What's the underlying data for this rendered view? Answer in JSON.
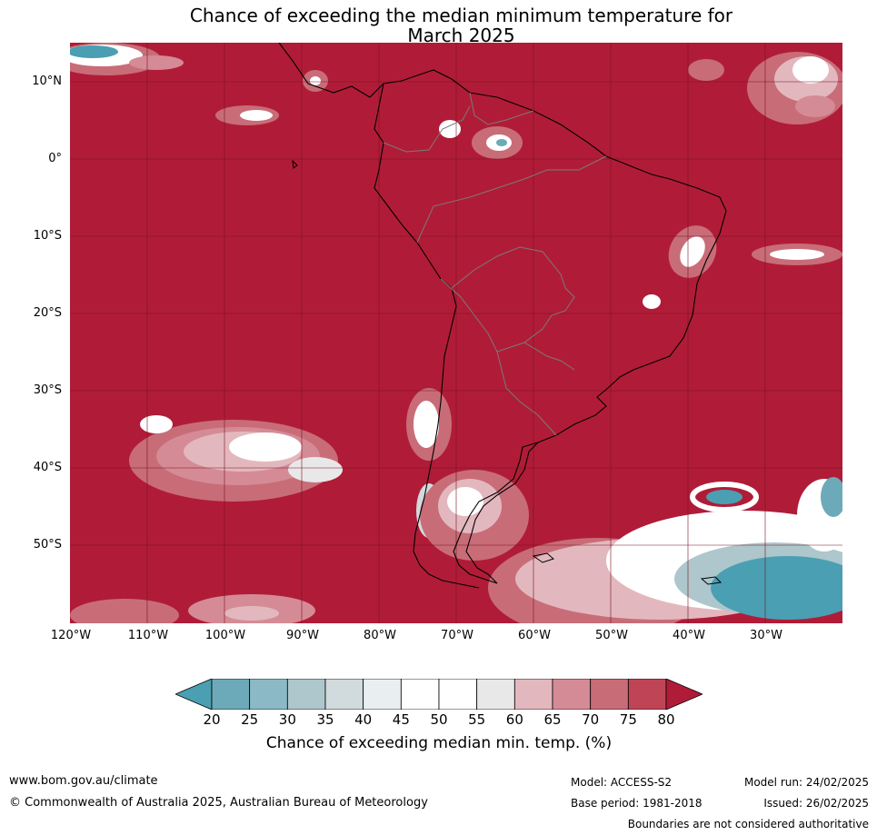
{
  "title_line1": "Chance of exceeding the median minimum temperature for",
  "title_line2": "March 2025",
  "lat_labels": [
    "10°N",
    "0°",
    "10°S",
    "20°S",
    "30°S",
    "40°S",
    "50°S"
  ],
  "lon_labels": [
    "120°W",
    "110°W",
    "100°W",
    "90°W",
    "80°W",
    "70°W",
    "60°W",
    "50°W",
    "40°W",
    "30°W"
  ],
  "colorbar": {
    "ticks": [
      "20",
      "25",
      "30",
      "35",
      "40",
      "45",
      "50",
      "55",
      "60",
      "65",
      "70",
      "75",
      "80"
    ],
    "colors": [
      "#4a9fb2",
      "#6daab9",
      "#8bbac6",
      "#adc7cc",
      "#d1dadc",
      "#e9eff1",
      "#ffffff",
      "#ffffff",
      "#e8e8e9",
      "#e2b8be",
      "#d58b96",
      "#c86d78",
      "#bf4556",
      "#b01c37"
    ],
    "label": "Chance of exceeding median min. temp. (%)"
  },
  "footer": {
    "url": "www.bom.gov.au/climate",
    "copyright": "© Commonwealth of Australia 2025, Australian Bureau of Meteorology",
    "model": "Model: ACCESS-S2",
    "model_run": "Model run: 24/02/2025",
    "base_period": "Base period: 1981-2018",
    "issued": "Issued: 26/02/2025",
    "disclaimer": "Boundaries are not considered authoritative"
  }
}
